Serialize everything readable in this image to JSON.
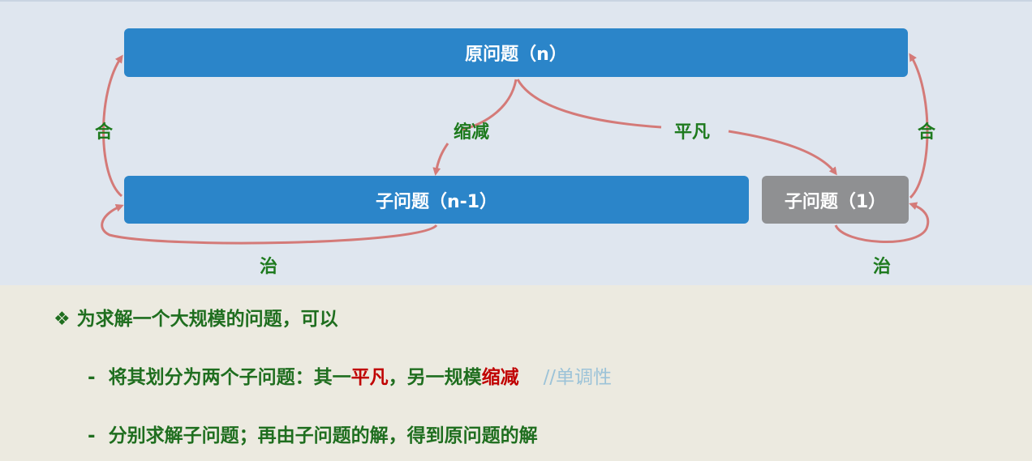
{
  "diagram": {
    "root_box": "原问题（n）",
    "sub_box": "子问题（n-1）",
    "base_box": "子问题（1）",
    "labels": {
      "combine_left": "合",
      "reduce": "缩减",
      "trivial": "平凡",
      "combine_right": "合",
      "conquer_left": "治",
      "conquer_right": "治"
    },
    "colors": {
      "box_blue": "#2b85c9",
      "box_gray": "#8f9092",
      "arrow": "#d47a78",
      "label_green": "#1e7a1e"
    }
  },
  "text": {
    "bullet_symbol": "❖",
    "heading": "为求解一个大规模的问题，可以",
    "item1": {
      "dash": "-",
      "part1": "将其划分为两个子问题：其一",
      "trivial": "平凡",
      "part2": "，另一规模",
      "reduce": "缩减",
      "comment": "//单调性"
    },
    "item2": {
      "dash": "-",
      "text": "分别求解子问题；再由子问题的解，得到原问题的解"
    }
  }
}
